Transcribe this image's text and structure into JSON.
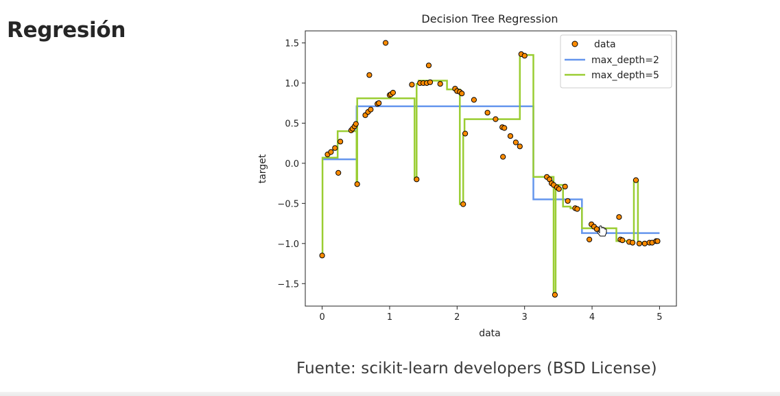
{
  "slide": {
    "title": "Regresión",
    "source": "Fuente: scikit-learn developers (BSD License)"
  },
  "chart_data": {
    "type": "scatter",
    "title": "Decision Tree Regression",
    "xlabel": "data",
    "ylabel": "target",
    "xlim": [
      -0.25,
      5.25
    ],
    "ylim": [
      -1.78,
      1.65
    ],
    "xticks": [
      0,
      1,
      2,
      3,
      4,
      5
    ],
    "yticks": [
      -1.5,
      -1.0,
      -0.5,
      0.0,
      0.5,
      1.0,
      1.5
    ],
    "ytick_labels": [
      "−1.5",
      "−1.0",
      "−0.5",
      "0.0",
      "0.5",
      "1.0",
      "1.5"
    ],
    "grid": false,
    "legend_position": "top-right",
    "colors": {
      "data_fill": "#ff8c00",
      "data_edge": "#000000",
      "depth2": "#6495ed",
      "depth5": "#9acd32"
    },
    "legend": [
      "data",
      "max_depth=2",
      "max_depth=5"
    ],
    "points": [
      [
        0.0,
        -1.15
      ],
      [
        0.08,
        0.11
      ],
      [
        0.13,
        0.14
      ],
      [
        0.19,
        0.19
      ],
      [
        0.24,
        -0.12
      ],
      [
        0.27,
        0.27
      ],
      [
        0.43,
        0.41
      ],
      [
        0.45,
        0.43
      ],
      [
        0.48,
        0.46
      ],
      [
        0.5,
        0.49
      ],
      [
        0.52,
        -0.26
      ],
      [
        0.64,
        0.6
      ],
      [
        0.68,
        0.64
      ],
      [
        0.7,
        1.1
      ],
      [
        0.72,
        0.67
      ],
      [
        0.82,
        0.74
      ],
      [
        0.84,
        0.75
      ],
      [
        0.94,
        1.5
      ],
      [
        1.0,
        0.85
      ],
      [
        1.02,
        0.86
      ],
      [
        1.05,
        0.88
      ],
      [
        1.33,
        0.98
      ],
      [
        1.4,
        -0.2
      ],
      [
        1.45,
        1.0
      ],
      [
        1.5,
        1.0
      ],
      [
        1.55,
        1.0
      ],
      [
        1.58,
        1.22
      ],
      [
        1.6,
        1.01
      ],
      [
        1.75,
        0.99
      ],
      [
        1.97,
        0.93
      ],
      [
        2.0,
        0.9
      ],
      [
        2.04,
        0.89
      ],
      [
        2.07,
        0.87
      ],
      [
        2.09,
        -0.51
      ],
      [
        2.12,
        0.37
      ],
      [
        2.25,
        0.79
      ],
      [
        2.45,
        0.63
      ],
      [
        2.57,
        0.55
      ],
      [
        2.67,
        0.45
      ],
      [
        2.7,
        0.44
      ],
      [
        2.68,
        0.08
      ],
      [
        2.79,
        0.34
      ],
      [
        2.87,
        0.26
      ],
      [
        2.93,
        0.21
      ],
      [
        2.95,
        1.36
      ],
      [
        3.0,
        1.34
      ],
      [
        3.33,
        -0.17
      ],
      [
        3.37,
        -0.2
      ],
      [
        3.4,
        -0.25
      ],
      [
        3.43,
        -0.27
      ],
      [
        3.45,
        -1.64
      ],
      [
        3.48,
        -0.3
      ],
      [
        3.51,
        -0.32
      ],
      [
        3.6,
        -0.29
      ],
      [
        3.64,
        -0.47
      ],
      [
        3.75,
        -0.56
      ],
      [
        3.78,
        -0.57
      ],
      [
        3.96,
        -0.95
      ],
      [
        3.99,
        -0.76
      ],
      [
        4.03,
        -0.79
      ],
      [
        4.07,
        -0.82
      ],
      [
        4.4,
        -0.67
      ],
      [
        4.42,
        -0.95
      ],
      [
        4.45,
        -0.96
      ],
      [
        4.55,
        -0.98
      ],
      [
        4.6,
        -0.99
      ],
      [
        4.65,
        -0.21
      ],
      [
        4.7,
        -1.0
      ],
      [
        4.78,
        -1.0
      ],
      [
        4.85,
        -0.99
      ],
      [
        4.89,
        -0.99
      ],
      [
        4.95,
        -0.97
      ],
      [
        4.97,
        -0.97
      ]
    ],
    "series": [
      {
        "name": "max_depth=2",
        "x": [
          0.0,
          0.51,
          0.51,
          3.13,
          3.13,
          3.85,
          3.85,
          5.0
        ],
        "y": [
          0.05,
          0.05,
          0.71,
          0.71,
          -0.45,
          -0.45,
          -0.87,
          -0.87
        ]
      },
      {
        "name": "max_depth=5",
        "x": [
          0.0,
          0.005,
          0.005,
          0.23,
          0.23,
          0.51,
          0.51,
          0.52,
          0.52,
          1.37,
          1.37,
          1.4,
          1.4,
          1.43,
          1.43,
          1.85,
          1.85,
          2.04,
          2.04,
          2.09,
          2.09,
          2.11,
          2.11,
          2.93,
          2.93,
          3.13,
          3.13,
          3.43,
          3.43,
          3.46,
          3.46,
          3.57,
          3.57,
          3.68,
          3.68,
          3.85,
          3.85,
          4.36,
          4.36,
          4.62,
          4.62,
          4.68,
          4.68,
          5.0
        ],
        "y": [
          -1.15,
          -1.15,
          0.07,
          0.07,
          0.4,
          0.4,
          -0.26,
          -0.26,
          0.81,
          0.81,
          -0.2,
          -0.2,
          0.99,
          0.99,
          1.03,
          1.03,
          0.92,
          0.92,
          -0.51,
          -0.51,
          0.37,
          0.37,
          0.55,
          0.55,
          1.35,
          1.35,
          -0.17,
          -0.17,
          -1.64,
          -1.64,
          -0.27,
          -0.27,
          -0.54,
          -0.54,
          -0.56,
          -0.56,
          -0.81,
          -0.81,
          -0.97,
          -0.97,
          -0.21,
          -0.21,
          -0.99,
          -0.99
        ]
      }
    ]
  }
}
